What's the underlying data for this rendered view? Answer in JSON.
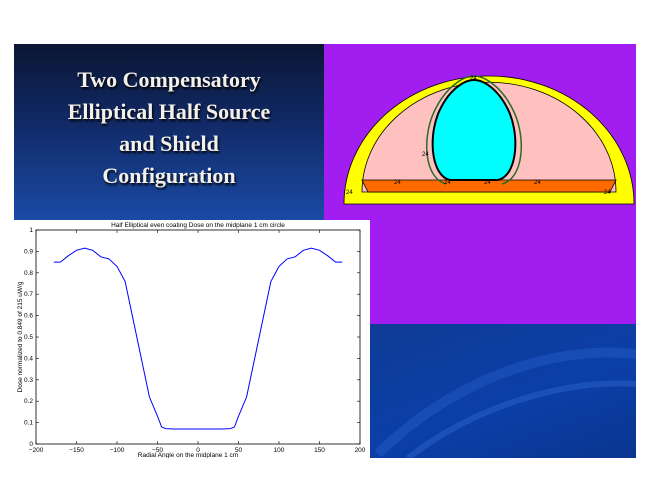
{
  "slide": {
    "title": "Two Compensatory\nElliptical Half Source\nand Shield\nConfiguration"
  },
  "colors": {
    "title_bg": "#0a1633",
    "diagram_bg": "#a21ef0",
    "shield_yellow": "#ffff00",
    "inner_pink": "#ffc0c0",
    "source_cyan": "#00ffff",
    "floor_orange": "#ff6a00",
    "line_blue": "#0000ff"
  },
  "diagram": {
    "labels": [
      "24",
      "24",
      "24",
      "24",
      "24",
      "24",
      "24",
      "24"
    ]
  },
  "chart_data": {
    "type": "line",
    "title": "Half Elliptical even coating Dose on the midplane 1 cm circle",
    "xlabel": "Radial Angle on the midplane 1 cm",
    "ylabel": "Dose normalized to 0.849 of 215 uW/g",
    "xlim": [
      -200,
      200
    ],
    "ylim": [
      0,
      1
    ],
    "xticks": [
      -200,
      -150,
      -100,
      -50,
      0,
      50,
      100,
      150,
      200
    ],
    "yticks": [
      0,
      0.1,
      0.2,
      0.3,
      0.4,
      0.5,
      0.6,
      0.7,
      0.8,
      0.9,
      1
    ],
    "xtick_labels": [
      "−200",
      "−150",
      "−100",
      "−50",
      "0",
      "50",
      "100",
      "150",
      "200"
    ],
    "ytick_labels": [
      "0",
      "0.1",
      "0.2",
      "0.3",
      "0.4",
      "0.5",
      "0.6",
      "0.7",
      "0.8",
      "0.9",
      "1"
    ],
    "grid": false,
    "series": [
      {
        "x": [
          -178,
          -170,
          -160,
          -150,
          -140,
          -130,
          -120,
          -110,
          -100,
          -90,
          -80,
          -70,
          -60,
          -50,
          -45,
          -40,
          -30,
          -20,
          -10,
          0,
          10,
          20,
          30,
          40,
          45,
          50,
          60,
          70,
          80,
          90,
          100,
          110,
          120,
          130,
          140,
          150,
          160,
          170,
          178
        ],
        "y": [
          0.85,
          0.85,
          0.88,
          0.905,
          0.915,
          0.905,
          0.875,
          0.865,
          0.83,
          0.76,
          0.58,
          0.4,
          0.22,
          0.13,
          0.08,
          0.072,
          0.07,
          0.07,
          0.07,
          0.07,
          0.07,
          0.07,
          0.07,
          0.072,
          0.08,
          0.13,
          0.22,
          0.4,
          0.58,
          0.76,
          0.83,
          0.865,
          0.875,
          0.905,
          0.915,
          0.905,
          0.88,
          0.85,
          0.85
        ]
      }
    ]
  }
}
